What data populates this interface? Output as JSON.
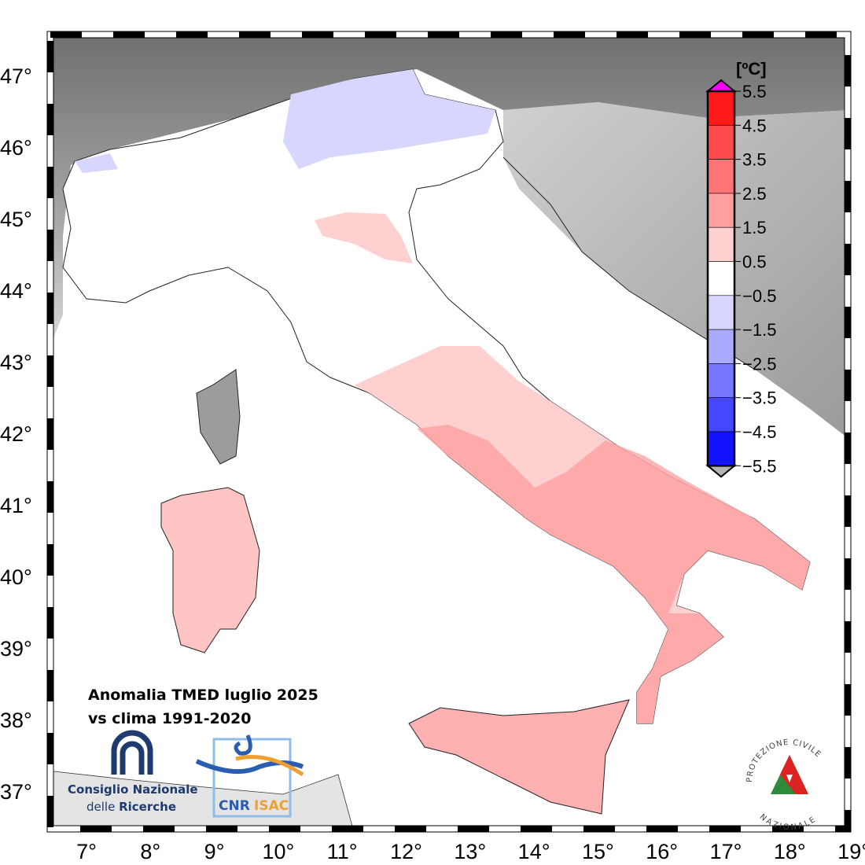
{
  "caption": {
    "line1": "Anomalia TMED luglio 2025",
    "line2": "vs clima 1991-2020"
  },
  "legend": {
    "unit": "[ºC]",
    "ticks": [
      "5.5",
      "4.5",
      "3.5",
      "2.5",
      "1.5",
      "0.5",
      "−0.5",
      "−1.5",
      "−2.5",
      "−3.5",
      "−4.5",
      "−5.5"
    ],
    "colors": [
      "#ff1a1a",
      "#ff4b4b",
      "#ff7474",
      "#ff9e9e",
      "#ffd0d0",
      "#ffffff",
      "#d6d6ff",
      "#aaaaff",
      "#7878ff",
      "#4646ff",
      "#1212ff"
    ],
    "over_color": "#ff00ff",
    "under_color": "#b4b4b4"
  },
  "axes": {
    "lat_labels": [
      "47°",
      "46°",
      "45°",
      "44°",
      "43°",
      "42°",
      "41°",
      "40°",
      "39°",
      "38°",
      "37°"
    ],
    "lon_labels": [
      "7°",
      "8°",
      "9°",
      "10°",
      "11°",
      "12°",
      "13°",
      "14°",
      "15°",
      "16°",
      "17°",
      "18°",
      "19°"
    ]
  },
  "logos": {
    "cnr_line1": "Consiglio Nazionale",
    "cnr_line2a": "delle ",
    "cnr_line2b": "Ricerche",
    "isac_a": "CNR",
    "isac_b": "ISAC",
    "protezione": "PROTEZIONE CIVILE",
    "nazionale": "NAZIONALE"
  }
}
